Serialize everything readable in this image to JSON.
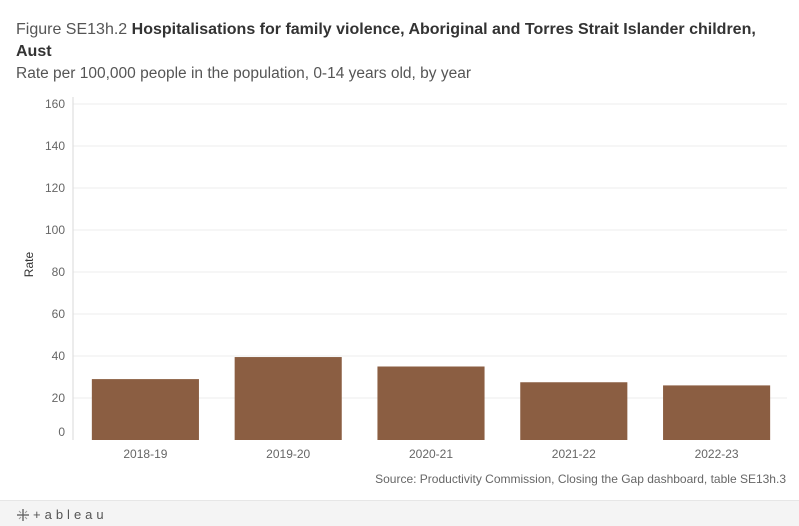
{
  "header": {
    "figure_prefix": "Figure SE13h.2",
    "title": "Hospitalisations for family violence, Aboriginal and Torres Strait Islander children, Aust",
    "subtitle": "Rate per 100,000 people in the population, 0-14 years old, by year"
  },
  "chart_data": {
    "type": "bar",
    "categories": [
      "2018-19",
      "2019-20",
      "2020-21",
      "2021-22",
      "2022-23"
    ],
    "values": [
      29,
      39.5,
      35,
      27.5,
      26
    ],
    "title": "Hospitalisations for family violence, Aboriginal and Torres Strait Islander children, Aust",
    "xlabel": "",
    "ylabel": "Rate",
    "ylim": [
      0,
      160
    ],
    "yticks": [
      0,
      20,
      40,
      60,
      80,
      100,
      120,
      140,
      160
    ],
    "bar_color": "#8b5e42",
    "grid": true
  },
  "footer": {
    "source": "Source: Productivity Commission, Closing the Gap dashboard, table SE13h.3",
    "logo_text": "+ableau",
    "logo_icon": "tableau-plus-icon"
  }
}
